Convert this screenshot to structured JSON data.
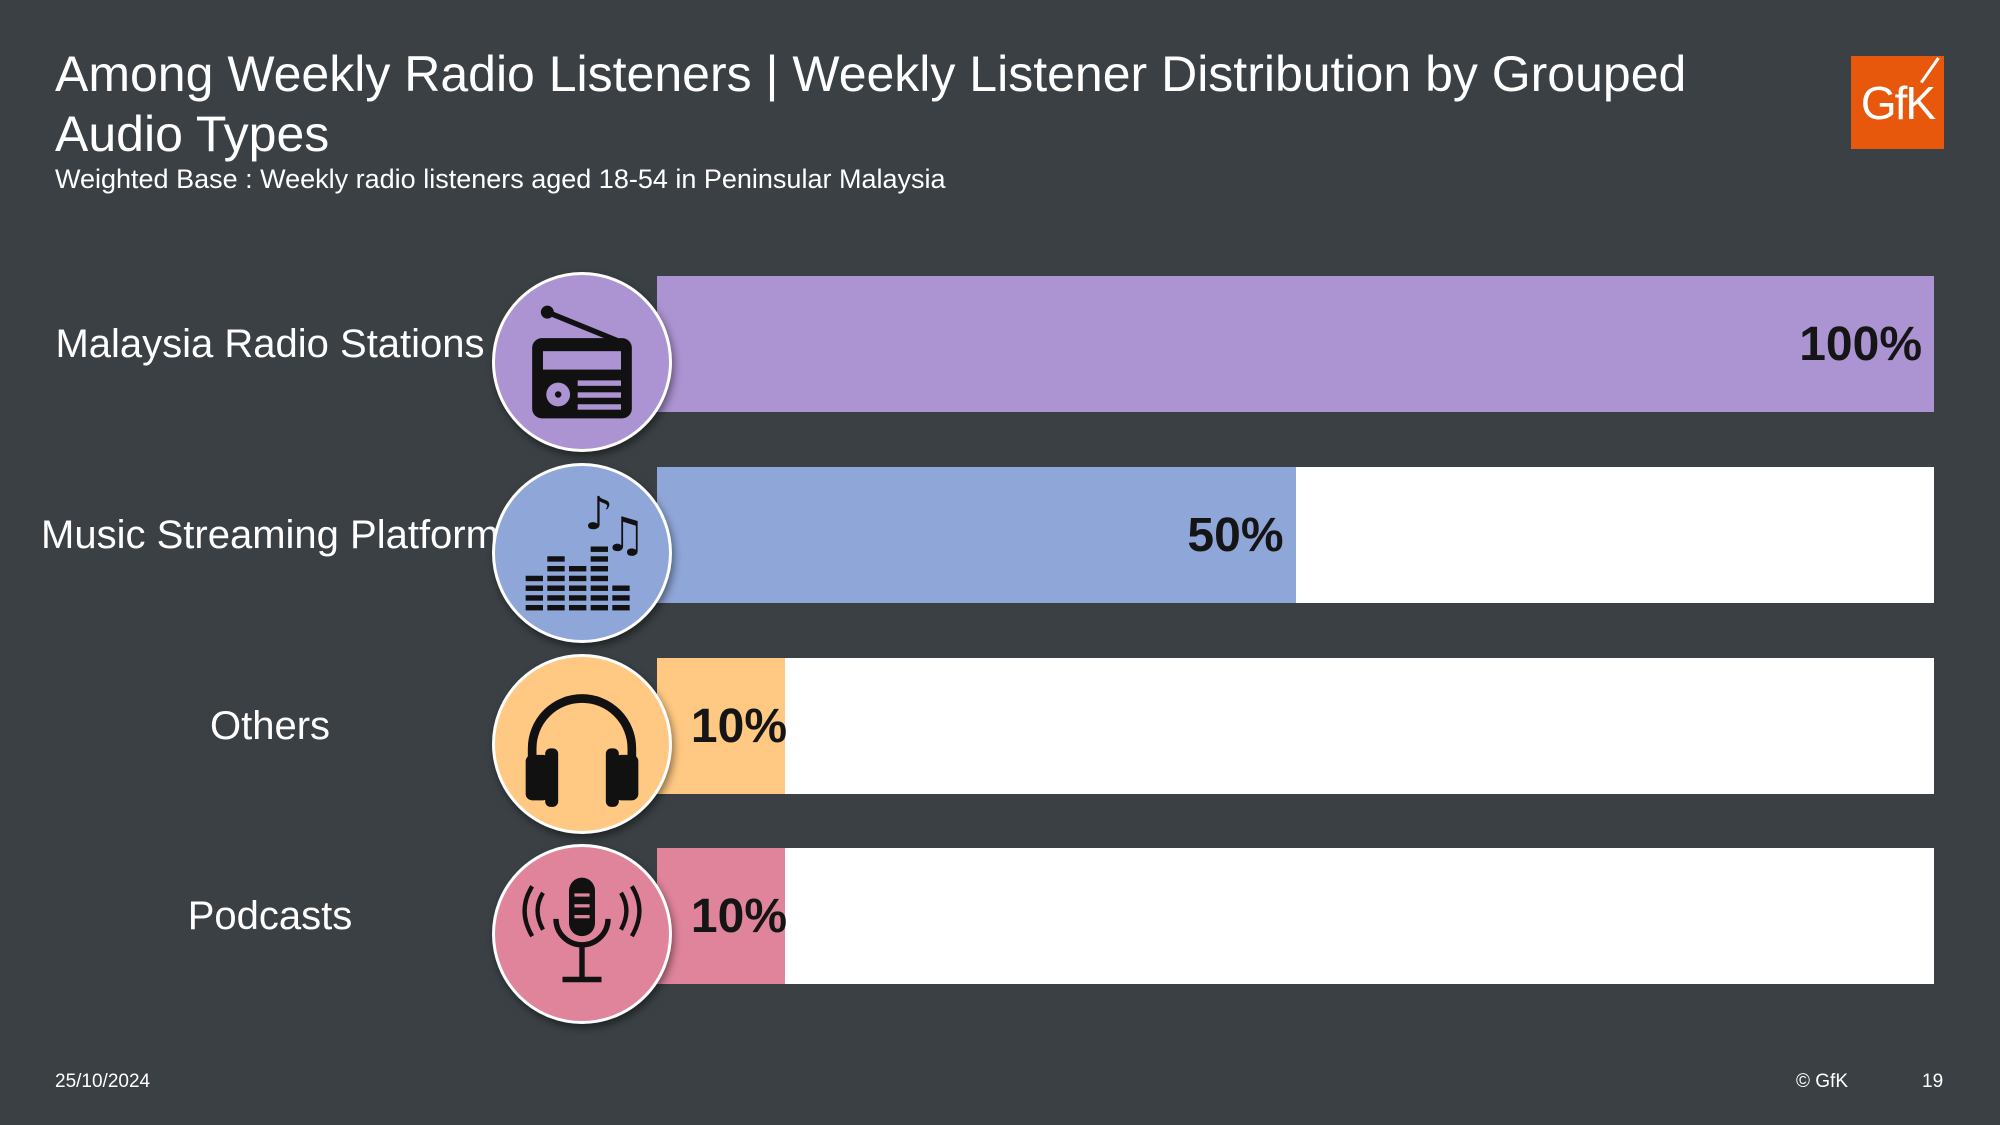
{
  "header": {
    "title": "Among Weekly Radio Listeners | Weekly Listener Distribution by Grouped Audio Types",
    "subtitle": "Weighted Base : Weekly radio listeners aged 18-54 in Peninsular Malaysia",
    "logo_text": "GfK"
  },
  "chart_data": {
    "type": "bar",
    "orientation": "horizontal",
    "title": "Among Weekly Radio Listeners | Weekly Listener Distribution by Grouped Audio Types",
    "subtitle": "Weighted Base : Weekly radio listeners aged 18-54 in Peninsular Malaysia",
    "xlim": [
      0,
      100
    ],
    "unit": "%",
    "categories": [
      "Malaysia Radio Stations",
      "Music Streaming Platform",
      "Others",
      "Podcasts"
    ],
    "values": [
      100,
      50,
      10,
      10
    ],
    "value_labels": [
      "100%",
      "50%",
      "10%",
      "10%"
    ],
    "colors": [
      "#ac93d2",
      "#8fa6d8",
      "#ffc983",
      "#e0849c"
    ],
    "icons": [
      "radio-icon",
      "music-equalizer-icon",
      "headphones-icon",
      "podcast-microphone-icon"
    ],
    "grid": false
  },
  "footer": {
    "date": "25/10/2024",
    "copyright": "© GfK",
    "page_number": "19"
  }
}
